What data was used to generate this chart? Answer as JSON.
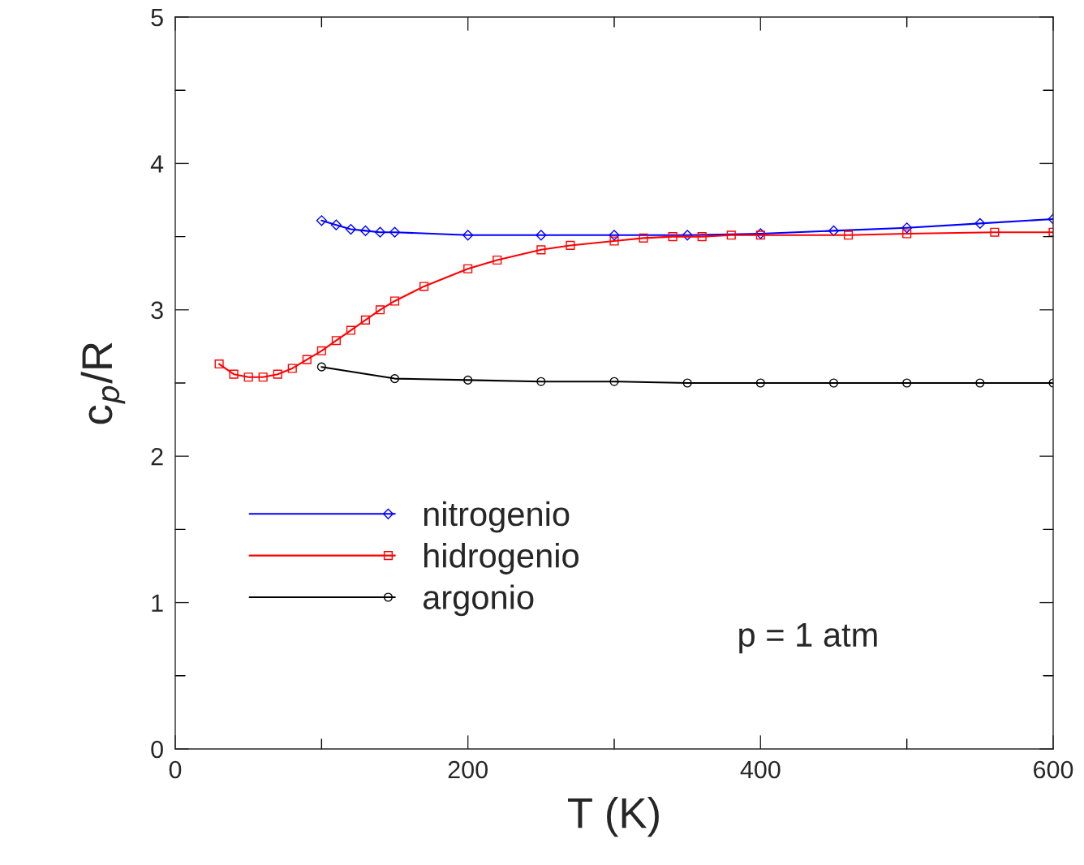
{
  "chart_data": {
    "type": "line",
    "xlabel": "T (K)",
    "ylabel": "c$_{p}$/R",
    "xlim": [
      0,
      600
    ],
    "ylim": [
      0,
      5
    ],
    "xticks": [
      0,
      {
        "value": 100,
        "label": null
      },
      200,
      {
        "value": 300,
        "label": null
      },
      400,
      {
        "value": 500,
        "label": null
      },
      600
    ],
    "yticks": [
      0,
      {
        "value": 0.5,
        "label": null
      },
      1,
      {
        "value": 1.5,
        "label": null
      },
      2,
      {
        "value": 2.5,
        "label": null
      },
      3,
      {
        "value": 3.5,
        "label": null
      },
      4,
      {
        "value": 4.5,
        "label": null
      },
      5
    ],
    "grid": false,
    "legend": "bottom left",
    "line_style": "solid",
    "annotations": [
      "p = 1 atm"
    ],
    "series": [
      {
        "name": "nitrogenio",
        "color": "#0000ff",
        "marker": "diamond",
        "x": [
          100,
          110,
          120,
          130,
          140,
          150,
          200,
          250,
          300,
          350,
          400,
          450,
          500,
          550,
          600
        ],
        "values": [
          3.61,
          3.58,
          3.55,
          3.54,
          3.53,
          3.53,
          3.51,
          3.51,
          3.51,
          3.51,
          3.52,
          3.54,
          3.56,
          3.59,
          3.62
        ]
      },
      {
        "name": "hidrogenio",
        "color": "#ff0000",
        "marker": "square",
        "x": [
          30,
          40,
          50,
          60,
          70,
          80,
          90,
          100,
          110,
          120,
          130,
          140,
          150,
          170,
          200,
          220,
          250,
          270,
          300,
          320,
          340,
          360,
          380,
          400,
          460,
          500,
          560,
          600
        ],
        "values": [
          2.63,
          2.56,
          2.54,
          2.54,
          2.56,
          2.6,
          2.66,
          2.72,
          2.79,
          2.86,
          2.93,
          3.0,
          3.06,
          3.16,
          3.28,
          3.34,
          3.41,
          3.44,
          3.47,
          3.49,
          3.5,
          3.5,
          3.51,
          3.51,
          3.51,
          3.52,
          3.53,
          3.53
        ]
      },
      {
        "name": "argonio",
        "color": "#000000",
        "marker": "circle",
        "x": [
          100,
          150,
          200,
          250,
          300,
          350,
          400,
          450,
          500,
          550,
          600
        ],
        "values": [
          2.61,
          2.53,
          2.52,
          2.51,
          2.51,
          2.5,
          2.5,
          2.5,
          2.5,
          2.5,
          2.5
        ]
      }
    ]
  }
}
